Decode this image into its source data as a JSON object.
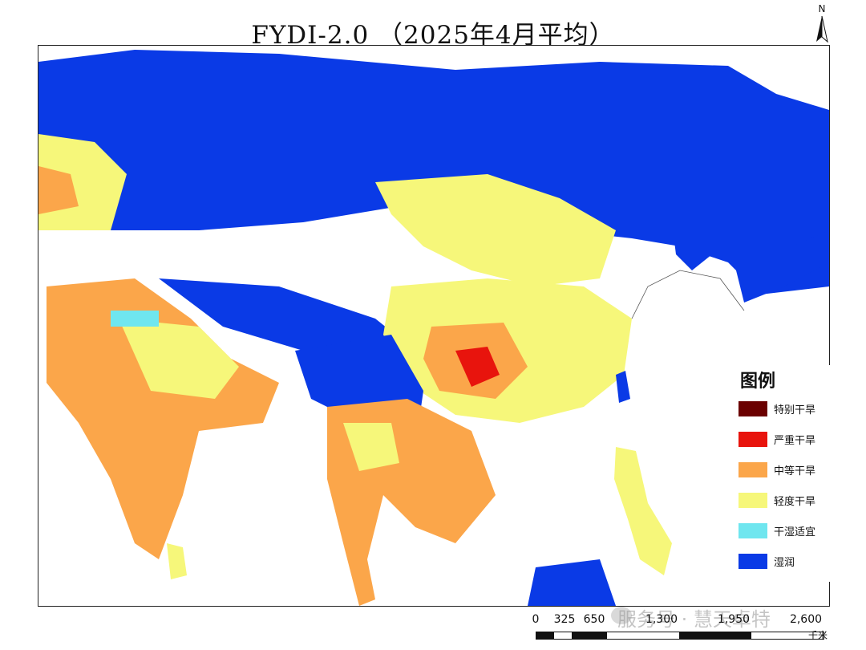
{
  "title": "FYDI-2.0 （2025年4月平均）",
  "north_arrow": {
    "label": "N",
    "icon": "north-arrow-icon"
  },
  "legend": {
    "title": "图例",
    "items": [
      {
        "label": "特别干旱",
        "color": "#6b0000"
      },
      {
        "label": "严重干旱",
        "color": "#e8140d"
      },
      {
        "label": "中等干旱",
        "color": "#fba64a"
      },
      {
        "label": "轻度干旱",
        "color": "#f6f77a"
      },
      {
        "label": "干湿适宜",
        "color": "#6fe6ef"
      },
      {
        "label": "湿润",
        "color": "#0a3ae6"
      }
    ]
  },
  "scale_bar": {
    "ticks": [
      "0",
      "325",
      "650",
      "1,300",
      "1,950",
      "2,600"
    ],
    "unit": "千米"
  },
  "watermark": "服务号 · 慧天卓特"
}
